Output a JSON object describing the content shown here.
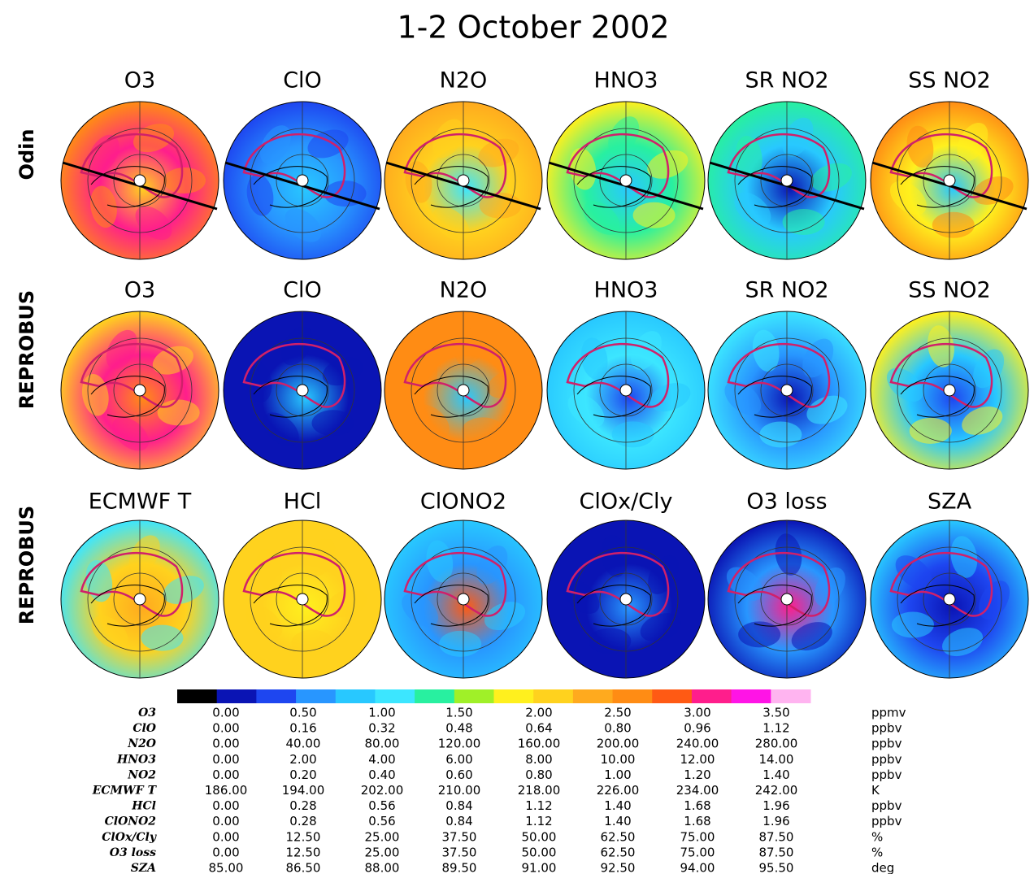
{
  "title": "1-2 October 2002",
  "rows": [
    {
      "label": "Odin",
      "panels": [
        "O3",
        "ClO",
        "N2O",
        "HNO3",
        "SR NO2",
        "SS NO2"
      ]
    },
    {
      "label": "REPROBUS",
      "panels": [
        "O3",
        "ClO",
        "N2O",
        "HNO3",
        "SR NO2",
        "SS NO2"
      ]
    },
    {
      "label": "REPROBUS",
      "panels": [
        "ECMWF T",
        "HCl",
        "ClONO2",
        "ClOx/Cly",
        "O3 loss",
        "SZA"
      ]
    }
  ],
  "colorbar": {
    "colors": [
      "#000000",
      "#0a14b4",
      "#1e46f0",
      "#2896ff",
      "#28c8ff",
      "#3ce6ff",
      "#28f0a0",
      "#a0f028",
      "#fff01e",
      "#ffd21e",
      "#ffaa1e",
      "#ff8c14",
      "#ff5a14",
      "#ff1e8c",
      "#ff14e6",
      "#ffb4f0"
    ]
  },
  "scale_table": {
    "rows": [
      {
        "name": "O3",
        "values": [
          "0.00",
          "0.50",
          "1.00",
          "1.50",
          "2.00",
          "2.50",
          "3.00",
          "3.50"
        ],
        "unit": "ppmv"
      },
      {
        "name": "ClO",
        "values": [
          "0.00",
          "0.16",
          "0.32",
          "0.48",
          "0.64",
          "0.80",
          "0.96",
          "1.12"
        ],
        "unit": "ppbv"
      },
      {
        "name": "N2O",
        "values": [
          "0.00",
          "40.00",
          "80.00",
          "120.00",
          "160.00",
          "200.00",
          "240.00",
          "280.00"
        ],
        "unit": "ppbv"
      },
      {
        "name": "HNO3",
        "values": [
          "0.00",
          "2.00",
          "4.00",
          "6.00",
          "8.00",
          "10.00",
          "12.00",
          "14.00"
        ],
        "unit": "ppbv"
      },
      {
        "name": "NO2",
        "values": [
          "0.00",
          "0.20",
          "0.40",
          "0.60",
          "0.80",
          "1.00",
          "1.20",
          "1.40"
        ],
        "unit": "ppbv"
      },
      {
        "name": "ECMWF T",
        "values": [
          "186.00",
          "194.00",
          "202.00",
          "210.00",
          "218.00",
          "226.00",
          "234.00",
          "242.00"
        ],
        "unit": "K"
      },
      {
        "name": "HCl",
        "values": [
          "0.00",
          "0.28",
          "0.56",
          "0.84",
          "1.12",
          "1.40",
          "1.68",
          "1.96"
        ],
        "unit": "ppbv"
      },
      {
        "name": "ClONO2",
        "values": [
          "0.00",
          "0.28",
          "0.56",
          "0.84",
          "1.12",
          "1.40",
          "1.68",
          "1.96"
        ],
        "unit": "ppbv"
      },
      {
        "name": "ClOx/Cly",
        "values": [
          "0.00",
          "12.50",
          "25.00",
          "37.50",
          "50.00",
          "62.50",
          "75.00",
          "87.50"
        ],
        "unit": "%"
      },
      {
        "name": "O3 loss",
        "values": [
          "0.00",
          "12.50",
          "25.00",
          "37.50",
          "50.00",
          "62.50",
          "75.00",
          "87.50"
        ],
        "unit": "%"
      },
      {
        "name": "SZA",
        "values": [
          "85.00",
          "86.50",
          "88.00",
          "89.50",
          "91.00",
          "92.50",
          "94.00",
          "95.50"
        ],
        "unit": "deg"
      }
    ]
  }
}
